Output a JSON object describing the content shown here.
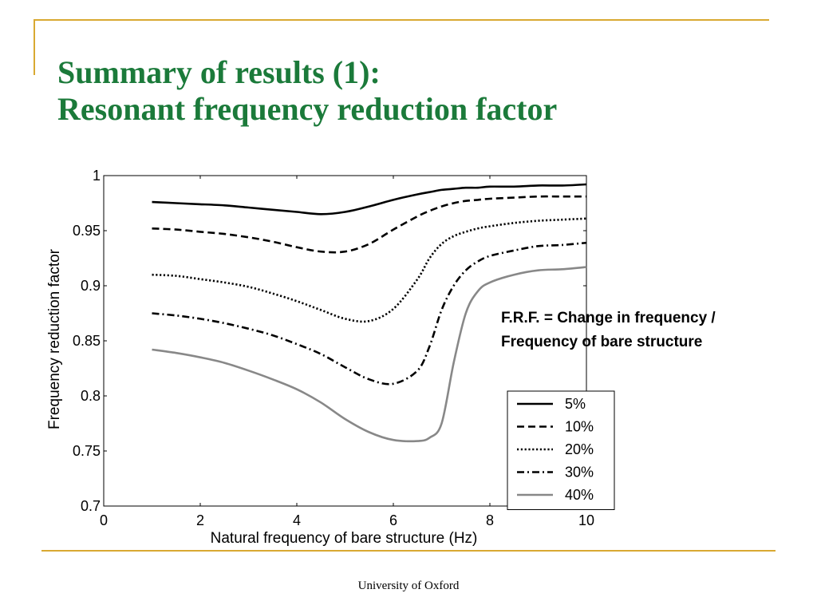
{
  "slide": {
    "title_line1": "Summary of results (1):",
    "title_line2": "Resonant frequency reduction factor",
    "annotation_line1": "F.R.F. = Change in frequency /",
    "annotation_line2": "Frequency of bare structure",
    "footer": "University of Oxford",
    "accent_color": "#d9a932",
    "title_color": "#1b7a3a"
  },
  "chart_data": {
    "type": "line",
    "title": "",
    "xlabel": "Natural frequency of bare structure (Hz)",
    "ylabel": "Frequency reduction factor",
    "xlim": [
      0,
      10
    ],
    "ylim": [
      0.7,
      1
    ],
    "xticks": [
      0,
      2,
      4,
      6,
      8,
      10
    ],
    "yticks": [
      0.7,
      0.75,
      0.8,
      0.85,
      0.9,
      0.95,
      1
    ],
    "x": [
      1,
      1.5,
      2,
      2.5,
      3,
      3.5,
      4,
      4.5,
      5,
      5.5,
      6,
      6.5,
      6.75,
      7,
      7.25,
      7.5,
      7.75,
      8,
      8.5,
      9,
      9.5,
      10
    ],
    "legend_position": "bottom-right",
    "series": [
      {
        "name": "5%",
        "style": "solid",
        "color": "#000000",
        "values": [
          0.976,
          0.975,
          0.974,
          0.973,
          0.971,
          0.969,
          0.967,
          0.965,
          0.967,
          0.972,
          0.978,
          0.983,
          0.985,
          0.987,
          0.988,
          0.989,
          0.989,
          0.99,
          0.99,
          0.991,
          0.991,
          0.992
        ]
      },
      {
        "name": "10%",
        "style": "dashed",
        "color": "#000000",
        "values": [
          0.952,
          0.951,
          0.949,
          0.947,
          0.944,
          0.94,
          0.935,
          0.931,
          0.931,
          0.938,
          0.951,
          0.963,
          0.968,
          0.972,
          0.975,
          0.977,
          0.978,
          0.979,
          0.98,
          0.981,
          0.981,
          0.981
        ]
      },
      {
        "name": "20%",
        "style": "dotted",
        "color": "#000000",
        "values": [
          0.91,
          0.909,
          0.906,
          0.903,
          0.899,
          0.893,
          0.886,
          0.878,
          0.87,
          0.868,
          0.879,
          0.906,
          0.925,
          0.938,
          0.945,
          0.949,
          0.952,
          0.954,
          0.957,
          0.959,
          0.96,
          0.961
        ]
      },
      {
        "name": "30%",
        "style": "dashdot",
        "color": "#000000",
        "values": [
          0.875,
          0.873,
          0.87,
          0.866,
          0.861,
          0.855,
          0.847,
          0.838,
          0.826,
          0.815,
          0.811,
          0.823,
          0.845,
          0.878,
          0.9,
          0.914,
          0.922,
          0.927,
          0.932,
          0.936,
          0.937,
          0.939
        ]
      },
      {
        "name": "40%",
        "style": "solid",
        "color": "#888888",
        "values": [
          0.842,
          0.839,
          0.835,
          0.83,
          0.823,
          0.815,
          0.806,
          0.794,
          0.779,
          0.767,
          0.76,
          0.759,
          0.762,
          0.775,
          0.83,
          0.875,
          0.895,
          0.903,
          0.91,
          0.914,
          0.915,
          0.917
        ]
      }
    ]
  }
}
